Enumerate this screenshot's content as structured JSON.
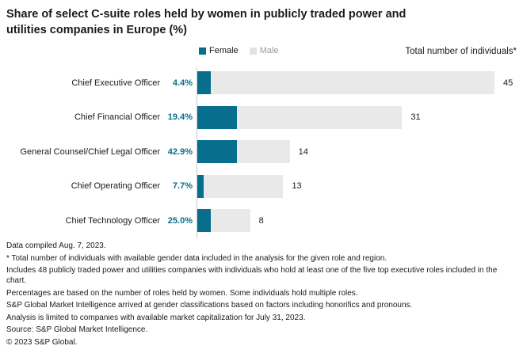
{
  "title_lines": [
    "Share of select C-suite roles held by women in publicly traded power and",
    "utilities companies in Europe (%)"
  ],
  "legend": {
    "female_label": "Female",
    "male_label": "Male"
  },
  "annotation_right": "Total number of individuals*",
  "colors": {
    "female": "#076e8e",
    "male": "#e9e9e9",
    "male_legend_swatch": "#e3e3e3",
    "pct_text": "#076e8e",
    "axis": "#c9c9c9"
  },
  "chart_data": {
    "type": "bar",
    "orientation": "horizontal",
    "stacked": true,
    "title": "Share of select C-suite roles held by women in publicly traded power and utilities companies in Europe (%)",
    "legend_entries": [
      "Female",
      "Male"
    ],
    "legend_position": "top",
    "grid": false,
    "x_max_individuals": 45,
    "categories": [
      "Chief Executive Officer",
      "Chief Financial Officer",
      "General Counsel/Chief Legal Officer",
      "Chief Operating Officer",
      "Chief Technology Officer"
    ],
    "series": [
      {
        "name": "Female share (%)",
        "values": [
          4.4,
          19.4,
          42.9,
          7.7,
          25.0
        ]
      },
      {
        "name": "Total number of individuals",
        "values": [
          45,
          31,
          14,
          13,
          8
        ]
      }
    ],
    "rows": [
      {
        "role": "Chief Executive Officer",
        "female_pct": 4.4,
        "female_pct_label": "4.4%",
        "total": 45
      },
      {
        "role": "Chief Financial Officer",
        "female_pct": 19.4,
        "female_pct_label": "19.4%",
        "total": 31
      },
      {
        "role": "General Counsel/Chief Legal Officer",
        "female_pct": 42.9,
        "female_pct_label": "42.9%",
        "total": 14
      },
      {
        "role": "Chief Operating Officer",
        "female_pct": 7.7,
        "female_pct_label": "7.7%",
        "total": 13
      },
      {
        "role": "Chief Technology Officer",
        "female_pct": 25.0,
        "female_pct_label": "25.0%",
        "total": 8
      }
    ]
  },
  "footnotes": [
    "Data compiled Aug. 7, 2023.",
    "* Total number of individuals with available gender data included in the analysis for the given role and region.",
    "Includes 48 publicly traded power and utilities companies with individuals who hold at least one of the five top executive roles included in the chart.",
    "Percentages are based on the number of roles held by women. Some individuals hold multiple roles.",
    "S&P Global Market Intelligence arrived at gender classifications based on factors including honorifics and pronouns.",
    "Analysis is limited to companies with available market capitalization for July 31, 2023.",
    "Source: S&P Global Market Intelligence.",
    "© 2023 S&P Global."
  ]
}
